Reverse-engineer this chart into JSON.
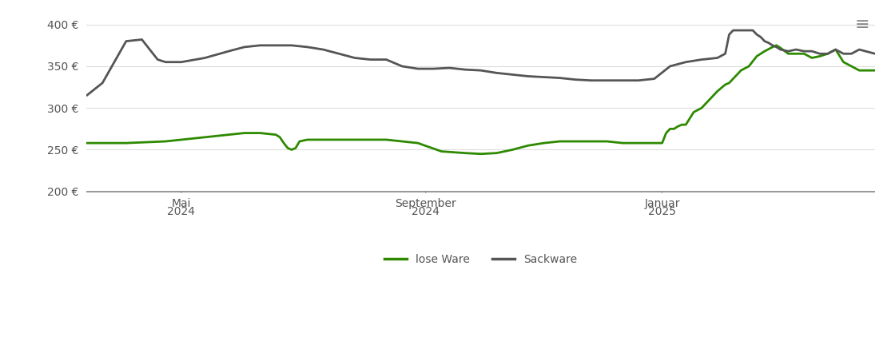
{
  "ylabel": "€",
  "ylim": [
    190,
    415
  ],
  "yticks": [
    200,
    250,
    300,
    350,
    400
  ],
  "ytick_labels": [
    "200 €",
    "250 €",
    "300 €",
    "350 €",
    "400 €"
  ],
  "background_color": "#ffffff",
  "grid_color": "#dddddd",
  "lose_ware_color": "#2d8a00",
  "sackware_color": "#555555",
  "legend_lose": "lose Ware",
  "legend_sack": "Sackware",
  "x_tick_positions": [
    0.12,
    0.43,
    0.73
  ],
  "x_tick_labels_line1": [
    "Mai",
    "September",
    "Januar"
  ],
  "x_tick_labels_line2": [
    "2024",
    "2024",
    "2025"
  ],
  "lose_ware": {
    "x": [
      0.0,
      0.05,
      0.1,
      0.12,
      0.15,
      0.18,
      0.2,
      0.22,
      0.24,
      0.245,
      0.25,
      0.255,
      0.26,
      0.265,
      0.27,
      0.28,
      0.3,
      0.35,
      0.38,
      0.4,
      0.42,
      0.45,
      0.48,
      0.5,
      0.52,
      0.54,
      0.56,
      0.58,
      0.6,
      0.62,
      0.64,
      0.66,
      0.68,
      0.7,
      0.72,
      0.73,
      0.735,
      0.74,
      0.745,
      0.75,
      0.755,
      0.76,
      0.77,
      0.78,
      0.79,
      0.8,
      0.81,
      0.815,
      0.82,
      0.83,
      0.84,
      0.85,
      0.86,
      0.87,
      0.875,
      0.88,
      0.89,
      0.9,
      0.91,
      0.92,
      0.93,
      0.94,
      0.95,
      0.96,
      0.97,
      0.98,
      1.0
    ],
    "y": [
      258,
      258,
      260,
      262,
      265,
      268,
      270,
      270,
      268,
      265,
      258,
      252,
      250,
      252,
      260,
      262,
      262,
      262,
      262,
      260,
      258,
      248,
      246,
      245,
      246,
      250,
      255,
      258,
      260,
      260,
      260,
      260,
      258,
      258,
      258,
      258,
      270,
      275,
      275,
      278,
      280,
      280,
      295,
      300,
      310,
      320,
      328,
      330,
      335,
      345,
      350,
      362,
      368,
      373,
      375,
      372,
      365,
      365,
      365,
      360,
      362,
      365,
      370,
      355,
      350,
      345,
      345
    ]
  },
  "sackware": {
    "x": [
      0.0,
      0.02,
      0.05,
      0.07,
      0.09,
      0.1,
      0.12,
      0.15,
      0.18,
      0.2,
      0.22,
      0.24,
      0.26,
      0.28,
      0.3,
      0.32,
      0.34,
      0.36,
      0.38,
      0.4,
      0.42,
      0.44,
      0.46,
      0.48,
      0.5,
      0.52,
      0.54,
      0.56,
      0.58,
      0.6,
      0.62,
      0.64,
      0.66,
      0.68,
      0.7,
      0.72,
      0.74,
      0.76,
      0.78,
      0.8,
      0.81,
      0.815,
      0.82,
      0.825,
      0.83,
      0.84,
      0.845,
      0.85,
      0.855,
      0.86,
      0.865,
      0.87,
      0.875,
      0.88,
      0.89,
      0.9,
      0.91,
      0.92,
      0.93,
      0.94,
      0.95,
      0.96,
      0.97,
      0.98,
      1.0
    ],
    "y": [
      315,
      330,
      380,
      382,
      358,
      355,
      355,
      360,
      368,
      373,
      375,
      375,
      375,
      373,
      370,
      365,
      360,
      358,
      358,
      350,
      347,
      347,
      348,
      346,
      345,
      342,
      340,
      338,
      337,
      336,
      334,
      333,
      333,
      333,
      333,
      335,
      350,
      355,
      358,
      360,
      365,
      388,
      393,
      393,
      393,
      393,
      393,
      388,
      385,
      380,
      378,
      375,
      373,
      370,
      368,
      370,
      368,
      368,
      365,
      365,
      370,
      365,
      365,
      370,
      365
    ]
  }
}
